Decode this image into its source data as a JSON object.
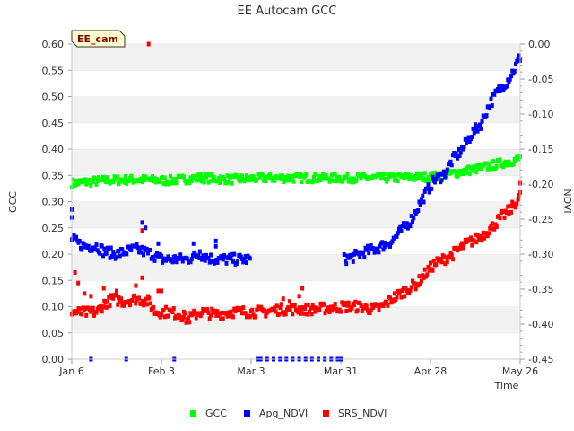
{
  "chart_data": {
    "type": "scatter",
    "title": "EE Autocam GCC",
    "badge": "EE_cam",
    "xlabel": "Time",
    "ylabel_left": "GCC",
    "ylabel_right": "NDVI",
    "xlim_days": [
      0,
      140
    ],
    "x_ticks": [
      {
        "day": 0,
        "label": "Jan 6"
      },
      {
        "day": 28,
        "label": "Feb 3"
      },
      {
        "day": 56,
        "label": "Mar 3"
      },
      {
        "day": 84,
        "label": "Mar 31"
      },
      {
        "day": 112,
        "label": "Apr 28"
      },
      {
        "day": 140,
        "label": "May 26"
      }
    ],
    "ylim_left": [
      0,
      0.6
    ],
    "y_ticks_left": [
      "0.00",
      "0.05",
      "0.10",
      "0.15",
      "0.20",
      "0.25",
      "0.30",
      "0.35",
      "0.40",
      "0.45",
      "0.50",
      "0.55",
      "0.60"
    ],
    "ylim_right": [
      -0.45,
      0.0
    ],
    "y_ticks_right": [
      "-0.45",
      "-0.40",
      "-0.35",
      "-0.30",
      "-0.25",
      "-0.20",
      "-0.15",
      "-0.10",
      "-0.05",
      "0.00"
    ],
    "grid": "horizontal alternating bands",
    "legend_position": "bottom",
    "series": [
      {
        "name": "GCC",
        "axis": "left",
        "color": "#00ff00",
        "trend": [
          [
            0,
            0.335
          ],
          [
            10,
            0.34
          ],
          [
            20,
            0.342
          ],
          [
            30,
            0.34
          ],
          [
            40,
            0.345
          ],
          [
            50,
            0.342
          ],
          [
            60,
            0.345
          ],
          [
            70,
            0.345
          ],
          [
            80,
            0.345
          ],
          [
            90,
            0.345
          ],
          [
            100,
            0.345
          ],
          [
            108,
            0.347
          ],
          [
            114,
            0.348
          ],
          [
            120,
            0.355
          ],
          [
            126,
            0.362
          ],
          [
            132,
            0.37
          ],
          [
            138,
            0.378
          ],
          [
            140,
            0.382
          ]
        ],
        "spread": 0.008,
        "gaps": []
      },
      {
        "name": "Apg_NDVI",
        "axis": "left",
        "color": "#0000ff",
        "trend": [
          [
            0,
            0.23
          ],
          [
            2,
            0.22
          ],
          [
            4,
            0.215
          ],
          [
            6,
            0.215
          ],
          [
            8,
            0.215
          ],
          [
            10,
            0.205
          ],
          [
            14,
            0.2
          ],
          [
            17,
            0.205
          ],
          [
            20,
            0.21
          ],
          [
            25,
            0.2
          ],
          [
            28,
            0.19
          ],
          [
            32,
            0.19
          ],
          [
            36,
            0.19
          ],
          [
            40,
            0.2
          ],
          [
            44,
            0.19
          ],
          [
            48,
            0.19
          ],
          [
            52,
            0.19
          ],
          [
            55,
            0.19
          ],
          [
            85,
            0.19
          ],
          [
            88,
            0.195
          ],
          [
            92,
            0.205
          ],
          [
            95,
            0.21
          ],
          [
            100,
            0.225
          ],
          [
            103,
            0.245
          ],
          [
            106,
            0.265
          ],
          [
            109,
            0.3
          ],
          [
            111,
            0.32
          ],
          [
            113,
            0.34
          ],
          [
            116,
            0.35
          ],
          [
            119,
            0.38
          ],
          [
            122,
            0.4
          ],
          [
            125,
            0.43
          ],
          [
            128,
            0.45
          ],
          [
            130,
            0.48
          ],
          [
            133,
            0.51
          ],
          [
            136,
            0.53
          ],
          [
            138,
            0.55
          ],
          [
            140,
            0.575
          ]
        ],
        "spread": 0.01,
        "gaps": [
          [
            56,
            85
          ]
        ],
        "extra_points": [
          [
            0,
            0.285
          ],
          [
            0,
            0.27
          ],
          [
            22,
            0.26
          ],
          [
            23,
            0.25
          ],
          [
            27,
            0.22
          ],
          [
            38,
            0.22
          ],
          [
            40,
            0.205
          ],
          [
            45,
            0.225
          ],
          [
            45,
            0.215
          ],
          [
            6,
            0.0
          ],
          [
            17,
            0.0
          ],
          [
            32,
            0.0
          ],
          [
            58,
            0.0
          ],
          [
            59,
            0.0
          ],
          [
            61,
            0.0
          ],
          [
            63,
            0.0
          ],
          [
            65,
            0.0
          ],
          [
            67,
            0.0
          ],
          [
            69,
            0.0
          ],
          [
            71,
            0.0
          ],
          [
            73,
            0.0
          ],
          [
            75,
            0.0
          ],
          [
            77,
            0.0
          ],
          [
            79,
            0.0
          ],
          [
            81,
            0.0
          ],
          [
            83,
            0.0
          ],
          [
            84,
            0.0
          ]
        ]
      },
      {
        "name": "SRS_NDVI",
        "axis": "left",
        "color": "#ff0000",
        "trend": [
          [
            0,
            0.09
          ],
          [
            4,
            0.088
          ],
          [
            8,
            0.09
          ],
          [
            10,
            0.105
          ],
          [
            13,
            0.115
          ],
          [
            16,
            0.11
          ],
          [
            20,
            0.115
          ],
          [
            24,
            0.11
          ],
          [
            26,
            0.09
          ],
          [
            30,
            0.09
          ],
          [
            34,
            0.085
          ],
          [
            36,
            0.075
          ],
          [
            40,
            0.09
          ],
          [
            45,
            0.085
          ],
          [
            50,
            0.09
          ],
          [
            55,
            0.09
          ],
          [
            60,
            0.09
          ],
          [
            65,
            0.095
          ],
          [
            70,
            0.095
          ],
          [
            75,
            0.095
          ],
          [
            80,
            0.097
          ],
          [
            85,
            0.1
          ],
          [
            90,
            0.1
          ],
          [
            94,
            0.095
          ],
          [
            97,
            0.1
          ],
          [
            100,
            0.115
          ],
          [
            104,
            0.13
          ],
          [
            108,
            0.145
          ],
          [
            110,
            0.16
          ],
          [
            113,
            0.18
          ],
          [
            116,
            0.19
          ],
          [
            119,
            0.2
          ],
          [
            122,
            0.215
          ],
          [
            125,
            0.225
          ],
          [
            128,
            0.235
          ],
          [
            131,
            0.25
          ],
          [
            134,
            0.27
          ],
          [
            137,
            0.285
          ],
          [
            140,
            0.31
          ]
        ],
        "spread": 0.01,
        "gaps": [],
        "extra_points": [
          [
            1,
            0.165
          ],
          [
            2,
            0.145
          ],
          [
            4,
            0.125
          ],
          [
            6,
            0.12
          ],
          [
            10,
            0.135
          ],
          [
            14,
            0.13
          ],
          [
            20,
            0.14
          ],
          [
            22,
            0.155
          ],
          [
            22,
            0.245
          ],
          [
            24,
            0.6
          ],
          [
            27,
            0.13
          ],
          [
            28,
            0.13
          ],
          [
            35,
            0.09
          ],
          [
            66,
            0.115
          ],
          [
            68,
            0.11
          ],
          [
            71,
            0.12
          ],
          [
            72,
            0.135
          ],
          [
            140,
            0.335
          ]
        ]
      }
    ]
  },
  "legend": {
    "items": [
      {
        "label": "GCC",
        "color": "#00ff00"
      },
      {
        "label": "Apg_NDVI",
        "color": "#0000ff"
      },
      {
        "label": "SRS_NDVI",
        "color": "#ff0000"
      }
    ]
  }
}
